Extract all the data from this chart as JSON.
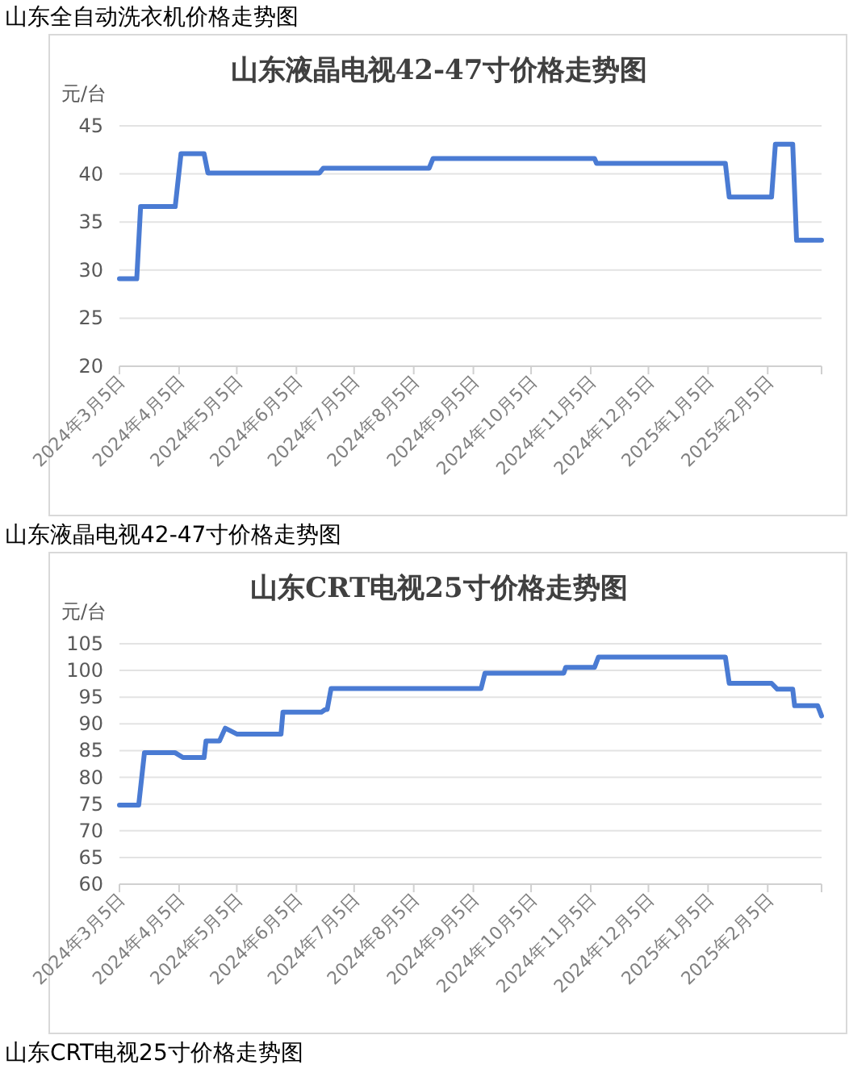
{
  "chart_data": [
    {
      "type": "line",
      "title": "山东液晶电视42-47寸价格走势图",
      "ylabel": "元/台",
      "color": "#4a7bd3",
      "grid": "y",
      "annotations": [
        "山东全自动洗衣机价格走势图",
        "山东液晶电视42-47寸价格走势图"
      ],
      "x": [
        "2024-03-05",
        "2024-03-14",
        "2024-03-16",
        "2024-04-03",
        "2024-04-06",
        "2024-04-18",
        "2024-04-20",
        "2024-06-17",
        "2024-06-19",
        "2024-08-13",
        "2024-08-15",
        "2024-11-07",
        "2024-11-08",
        "2025-01-14",
        "2025-01-16",
        "2025-02-07",
        "2025-02-09",
        "2025-02-18",
        "2025-02-20",
        "2025-03-05"
      ],
      "values": [
        29.1,
        29.1,
        36.6,
        36.6,
        42.1,
        42.1,
        40.1,
        40.1,
        40.6,
        40.6,
        41.6,
        41.6,
        41.1,
        41.1,
        37.6,
        37.6,
        43.1,
        43.1,
        33.1,
        33.1
      ],
      "xlim": [
        "2024-03-05",
        "2025-03-05"
      ],
      "ylim": [
        20,
        45
      ],
      "yticks": [
        20,
        25,
        30,
        35,
        40,
        45
      ],
      "xticks": [
        {
          "value": "2024-03-05",
          "label": "2024年3月5日"
        },
        {
          "value": "2024-04-05",
          "label": "2024年4月5日"
        },
        {
          "value": "2024-05-05",
          "label": "2024年5月5日"
        },
        {
          "value": "2024-06-05",
          "label": "2024年6月5日"
        },
        {
          "value": "2024-07-05",
          "label": "2024年7月5日"
        },
        {
          "value": "2024-08-05",
          "label": "2024年8月5日"
        },
        {
          "value": "2024-09-05",
          "label": "2024年9月5日"
        },
        {
          "value": "2024-10-05",
          "label": "2024年10月5日"
        },
        {
          "value": "2024-11-05",
          "label": "2024年11月5日"
        },
        {
          "value": "2024-12-05",
          "label": "2024年12月5日"
        },
        {
          "value": "2025-01-05",
          "label": "2025年1月5日"
        },
        {
          "value": "2025-02-05",
          "label": "2025年2月5日"
        },
        {
          "value": "2025-03-05",
          "label": null
        }
      ]
    },
    {
      "type": "line",
      "title": "山东CRT电视25寸价格走势图",
      "ylabel": "元/台",
      "color": "#4a7bd3",
      "grid": "y",
      "annotations": [
        "山东CRT电视25寸价格走势图"
      ],
      "x": [
        "2024-03-05",
        "2024-03-15",
        "2024-03-18",
        "2024-04-03",
        "2024-04-07",
        "2024-04-18",
        "2024-04-19",
        "2024-04-26",
        "2024-04-29",
        "2024-05-05",
        "2024-05-28",
        "2024-05-29",
        "2024-06-18",
        "2024-06-20",
        "2024-06-21",
        "2024-06-23",
        "2024-09-09",
        "2024-09-11",
        "2024-10-22",
        "2024-10-23",
        "2024-11-07",
        "2024-11-09",
        "2025-01-14",
        "2025-01-16",
        "2025-02-07",
        "2025-02-10",
        "2025-02-18",
        "2025-02-19",
        "2025-03-03",
        "2025-03-05"
      ],
      "values": [
        74.8,
        74.8,
        84.6,
        84.6,
        83.7,
        83.7,
        86.8,
        86.8,
        89.2,
        88.1,
        88.1,
        92.2,
        92.2,
        92.7,
        92.7,
        96.6,
        96.6,
        99.5,
        99.5,
        100.6,
        100.6,
        102.5,
        102.5,
        97.6,
        97.6,
        96.5,
        96.5,
        93.4,
        93.4,
        91.5
      ],
      "xlim": [
        "2024-03-05",
        "2025-03-05"
      ],
      "ylim": [
        60,
        105
      ],
      "yticks": [
        60,
        65,
        70,
        75,
        80,
        85,
        90,
        95,
        100,
        105
      ],
      "xticks": [
        {
          "value": "2024-03-05",
          "label": "2024年3月5日"
        },
        {
          "value": "2024-04-05",
          "label": "2024年4月5日"
        },
        {
          "value": "2024-05-05",
          "label": "2024年5月5日"
        },
        {
          "value": "2024-06-05",
          "label": "2024年6月5日"
        },
        {
          "value": "2024-07-05",
          "label": "2024年7月5日"
        },
        {
          "value": "2024-08-05",
          "label": "2024年8月5日"
        },
        {
          "value": "2024-09-05",
          "label": "2024年9月5日"
        },
        {
          "value": "2024-10-05",
          "label": "2024年10月5日"
        },
        {
          "value": "2024-11-05",
          "label": "2024年11月5日"
        },
        {
          "value": "2024-12-05",
          "label": "2024年12月5日"
        },
        {
          "value": "2025-01-05",
          "label": "2025年1月5日"
        },
        {
          "value": "2025-02-05",
          "label": "2025年2月5日"
        },
        {
          "value": "2025-03-05",
          "label": null
        }
      ]
    }
  ]
}
